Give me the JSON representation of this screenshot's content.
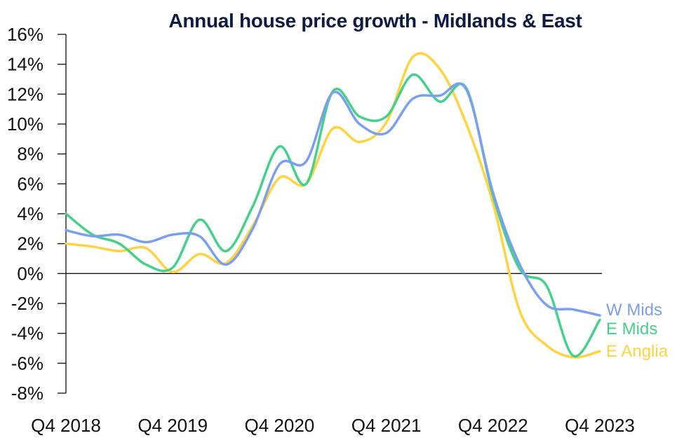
{
  "chart_data": {
    "type": "line",
    "title": "Annual house price growth - Midlands & East",
    "xlabel": "",
    "ylabel": "",
    "ylim": [
      -8,
      16
    ],
    "yticks": [
      -8,
      -6,
      -4,
      -2,
      0,
      2,
      4,
      6,
      8,
      10,
      12,
      14,
      16
    ],
    "ytick_labels": [
      "-8%",
      "-6%",
      "-4%",
      "-2%",
      "0%",
      "2%",
      "4%",
      "6%",
      "8%",
      "10%",
      "12%",
      "14%",
      "16%"
    ],
    "x": [
      "Q4 2018",
      "Q1 2019",
      "Q2 2019",
      "Q3 2019",
      "Q4 2019",
      "Q1 2020",
      "Q2 2020",
      "Q3 2020",
      "Q4 2020",
      "Q1 2021",
      "Q2 2021",
      "Q3 2021",
      "Q4 2021",
      "Q1 2022",
      "Q2 2022",
      "Q3 2022",
      "Q4 2022",
      "Q1 2023",
      "Q2 2023",
      "Q3 2023",
      "Q4 2023"
    ],
    "xtick_labels": [
      "Q4 2018",
      "Q4 2019",
      "Q4 2020",
      "Q4 2021",
      "Q4 2022",
      "Q4 2023"
    ],
    "xtick_indices": [
      0,
      4,
      8,
      12,
      16,
      20
    ],
    "grid": false,
    "zero_line": true,
    "legend": "right-end labels",
    "series": [
      {
        "name": "W Mids",
        "color": "#7b9ff0",
        "values": [
          2.9,
          2.5,
          2.6,
          2.1,
          2.6,
          2.5,
          0.6,
          3.0,
          7.3,
          7.5,
          12.1,
          10.0,
          9.4,
          11.7,
          11.9,
          12.3,
          5.4,
          0.6,
          -2.1,
          -2.4,
          -2.8
        ]
      },
      {
        "name": "E Mids",
        "color": "#45d18a",
        "values": [
          4.0,
          2.6,
          2.0,
          0.6,
          0.4,
          3.6,
          1.5,
          4.5,
          8.5,
          6.0,
          12.2,
          10.5,
          10.5,
          13.3,
          11.5,
          12.4,
          5.2,
          0.3,
          -0.8,
          -5.5,
          -3.1
        ]
      },
      {
        "name": "E Anglia",
        "color": "#ffd23f",
        "values": [
          2.0,
          1.8,
          1.5,
          1.7,
          0.1,
          1.3,
          0.7,
          3.2,
          6.4,
          6.0,
          9.7,
          8.8,
          10.1,
          14.5,
          13.7,
          10.0,
          4.7,
          -2.5,
          -4.8,
          -5.6,
          -5.2
        ]
      }
    ]
  }
}
